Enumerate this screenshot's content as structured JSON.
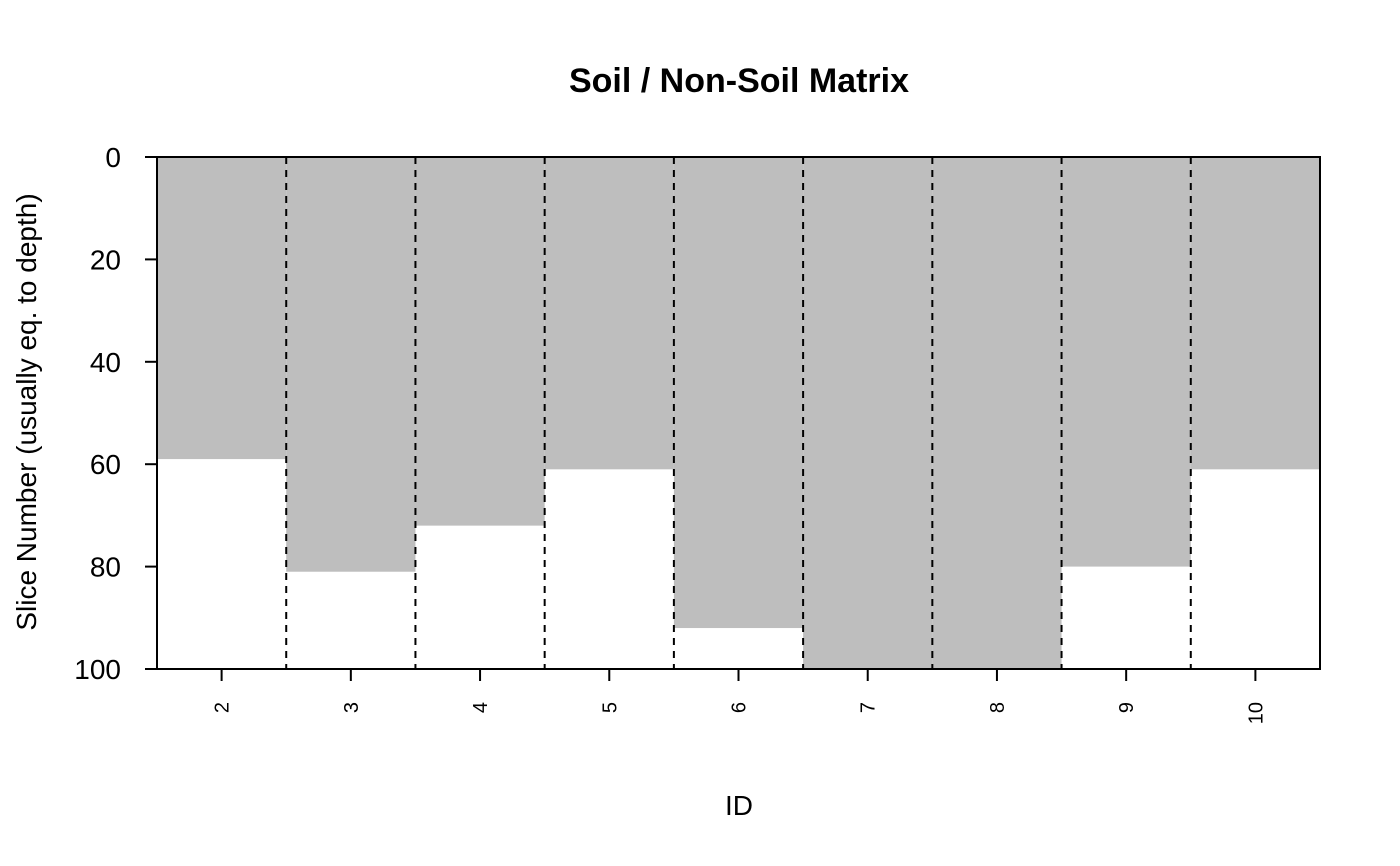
{
  "chart_data": {
    "type": "bar",
    "title": "Soil / Non-Soil Matrix",
    "xlabel": "ID",
    "ylabel": "Slice Number (usually eq. to depth)",
    "categories": [
      "2",
      "3",
      "4",
      "5",
      "6",
      "7",
      "8",
      "9",
      "10"
    ],
    "values": [
      59,
      81,
      72,
      61,
      92,
      100,
      100,
      80,
      61
    ],
    "ylim": [
      0,
      100
    ],
    "y_reversed": true,
    "yticks": [
      0,
      20,
      40,
      60,
      80,
      100
    ],
    "grid": false,
    "legend": "none",
    "separator_lines": "dashed vertical between profiles",
    "colors": {
      "soil": "#bebebe",
      "non_soil": "#ffffff",
      "axis": "#000000"
    }
  }
}
